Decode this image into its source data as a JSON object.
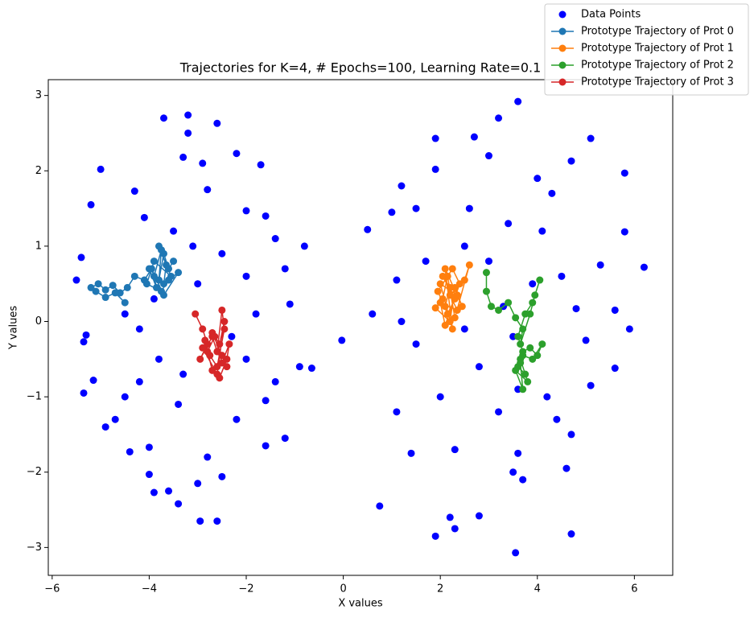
{
  "chart_data": {
    "type": "scatter",
    "title": "Trajectories for K=4, # Epochs=100, Learning Rate=0.1",
    "xlabel": "X values",
    "ylabel": "Y values",
    "xlim": [
      -6.08,
      6.79
    ],
    "ylim": [
      -3.37,
      3.21
    ],
    "xticks": [
      {
        "value": -6,
        "label": "−6"
      },
      {
        "value": -4,
        "label": "−4"
      },
      {
        "value": -2,
        "label": "−2"
      },
      0,
      2,
      4,
      6
    ],
    "yticks": [
      {
        "value": -3,
        "label": "−3"
      },
      {
        "value": -2,
        "label": "−2"
      },
      {
        "value": -1,
        "label": "−1"
      },
      0,
      1,
      2,
      3
    ],
    "grid": false,
    "legend": "upper right",
    "series": [
      {
        "name": "Data Points",
        "mode": "markers",
        "color": "#0000ff",
        "x": [
          -5.5,
          -5.4,
          -5.35,
          -5.3,
          -5.35,
          -5.2,
          -5.15,
          -5.0,
          -4.9,
          -4.7,
          -4.5,
          -4.4,
          -4.3,
          -4.1,
          -4.0,
          -4.0,
          -3.9,
          -3.7,
          -3.6,
          -3.4,
          -3.3,
          -3.2,
          -3.2,
          -3.0,
          -2.95,
          -2.9,
          -2.8,
          -2.6,
          -2.6,
          -2.5,
          -2.2,
          -2.0,
          -1.7,
          -1.6,
          -1.4,
          -1.2,
          -1.1,
          -0.8,
          -0.9,
          -0.65,
          -1.2,
          -1.6,
          -1.6,
          -2.0,
          -2.3,
          -3.0,
          -3.5,
          -3.3,
          -3.8,
          -4.2,
          -4.5,
          -2.5,
          -2.0,
          -3.9,
          -2.2,
          -3.4,
          -4.2,
          -2.8,
          -3.1,
          -1.8,
          -1.4,
          -0.03,
          0.5,
          0.6,
          0.75,
          1.0,
          1.1,
          1.1,
          1.2,
          1.4,
          1.5,
          1.9,
          1.9,
          1.9,
          2.2,
          2.3,
          2.7,
          2.8,
          3.2,
          3.0,
          3.6,
          3.6,
          3.5,
          3.7,
          3.55,
          4.0,
          4.3,
          4.7,
          5.1,
          5.8,
          5.8,
          6.2,
          5.6,
          5.9,
          5.6,
          4.7,
          4.6,
          4.7,
          5.1,
          5.3,
          2.5,
          3.0,
          3.5,
          2.8,
          3.2,
          4.5,
          4.2,
          2.0,
          1.5,
          1.2,
          4.8,
          5.0,
          2.6,
          3.4,
          4.1,
          2.3,
          4.4,
          1.7,
          3.9,
          3.3,
          2.5,
          3.6
        ],
        "y": [
          0.55,
          0.85,
          -0.27,
          -0.18,
          -0.95,
          1.55,
          -0.78,
          2.02,
          -1.4,
          -1.3,
          -1.0,
          -1.73,
          1.73,
          1.38,
          -1.67,
          -2.03,
          -2.27,
          2.7,
          -2.25,
          -2.42,
          2.18,
          2.74,
          2.5,
          -2.15,
          -2.65,
          2.1,
          1.75,
          2.63,
          -2.65,
          -2.06,
          2.23,
          1.47,
          2.08,
          1.4,
          1.1,
          0.7,
          0.23,
          1.0,
          -0.6,
          -0.62,
          -1.55,
          -1.65,
          -1.05,
          -0.5,
          -0.2,
          0.5,
          1.2,
          -0.7,
          -0.5,
          -0.1,
          0.1,
          0.9,
          0.6,
          0.3,
          -1.3,
          -1.1,
          -0.8,
          -1.8,
          1.0,
          0.1,
          -0.8,
          -0.25,
          1.22,
          0.1,
          -2.45,
          1.45,
          0.55,
          -1.2,
          1.8,
          -1.75,
          1.5,
          2.02,
          2.43,
          -2.85,
          -2.6,
          -2.75,
          2.45,
          -2.58,
          2.7,
          2.2,
          2.92,
          -1.75,
          -2.0,
          -2.1,
          -3.07,
          1.9,
          1.7,
          2.13,
          2.43,
          1.97,
          1.19,
          0.72,
          0.15,
          -0.1,
          -0.62,
          -2.82,
          -1.95,
          -1.5,
          -0.85,
          0.75,
          1.0,
          0.8,
          -0.2,
          -0.6,
          -1.2,
          0.6,
          -1.0,
          -1.0,
          -0.3,
          0.0,
          0.17,
          -0.25,
          1.5,
          1.3,
          1.2,
          -1.7,
          -1.3,
          0.8,
          0.5,
          0.2,
          -0.1,
          -0.9
        ]
      },
      {
        "name": "Prototype Trajectory of Prot 0",
        "mode": "lines+markers",
        "color": "#1f77b4",
        "x": [
          -3.5,
          -3.6,
          -3.7,
          -3.8,
          -3.75,
          -3.9,
          -3.85,
          -4.0,
          -3.7,
          -3.65,
          -3.8,
          -3.55,
          -3.9,
          -4.05,
          -3.75,
          -3.6,
          -3.4,
          -3.7,
          -3.95,
          -4.1,
          -4.3,
          -4.45,
          -4.6,
          -4.75,
          -4.9,
          -5.05,
          -5.2,
          -5.1,
          -4.9,
          -4.7,
          -4.5
        ],
        "y": [
          0.8,
          0.7,
          0.9,
          0.55,
          0.95,
          0.6,
          0.45,
          0.7,
          0.5,
          0.75,
          1.0,
          0.6,
          0.8,
          0.5,
          0.4,
          0.55,
          0.65,
          0.35,
          0.7,
          0.55,
          0.6,
          0.45,
          0.38,
          0.48,
          0.42,
          0.5,
          0.45,
          0.4,
          0.32,
          0.38,
          0.25
        ]
      },
      {
        "name": "Prototype Trajectory of Prot 1",
        "mode": "lines+markers",
        "color": "#ff7f0e",
        "x": [
          2.1,
          2.2,
          2.05,
          2.3,
          2.15,
          1.95,
          2.25,
          2.4,
          2.1,
          2.0,
          2.35,
          2.2,
          2.5,
          2.6,
          2.3,
          2.15,
          2.05,
          1.9,
          2.2,
          2.3,
          2.45,
          2.1,
          2.25,
          2.0,
          2.35
        ],
        "y": [
          0.2,
          0.45,
          0.6,
          0.3,
          0.1,
          0.4,
          0.7,
          0.5,
          -0.05,
          0.25,
          0.15,
          0.35,
          0.55,
          0.75,
          0.05,
          0.6,
          0.3,
          0.18,
          0.0,
          0.45,
          0.2,
          0.7,
          -0.1,
          0.5,
          0.35
        ]
      },
      {
        "name": "Prototype Trajectory of Prot 2",
        "mode": "lines+markers",
        "color": "#2ca02c",
        "x": [
          2.95,
          2.95,
          3.05,
          3.2,
          3.4,
          3.55,
          3.7,
          3.65,
          3.85,
          3.95,
          4.05,
          3.9,
          3.75,
          3.6,
          3.7,
          3.85,
          4.0,
          4.1,
          3.9,
          3.7,
          3.6,
          3.75,
          3.65,
          3.8,
          3.55,
          3.7,
          3.65
        ],
        "y": [
          0.65,
          0.4,
          0.2,
          0.15,
          0.25,
          0.05,
          -0.1,
          -0.3,
          0.1,
          0.35,
          0.55,
          0.25,
          0.1,
          -0.2,
          -0.4,
          -0.35,
          -0.45,
          -0.3,
          -0.5,
          -0.45,
          -0.6,
          -0.7,
          -0.5,
          -0.8,
          -0.65,
          -0.9,
          -0.55
        ]
      },
      {
        "name": "Prototype Trajectory of Prot 3",
        "mode": "lines+markers",
        "color": "#d62728",
        "x": [
          -3.05,
          -2.9,
          -2.8,
          -2.95,
          -2.7,
          -2.6,
          -2.5,
          -2.45,
          -2.6,
          -2.75,
          -2.85,
          -2.7,
          -2.55,
          -2.4,
          -2.35,
          -2.5,
          -2.65,
          -2.8,
          -2.9,
          -2.6,
          -2.45,
          -2.55,
          -2.7,
          -2.5,
          -2.4
        ],
        "y": [
          0.1,
          -0.1,
          -0.3,
          -0.5,
          -0.2,
          -0.4,
          0.15,
          -0.1,
          -0.6,
          -0.45,
          -0.25,
          -0.65,
          -0.75,
          -0.5,
          -0.3,
          -0.55,
          -0.2,
          -0.4,
          -0.35,
          -0.7,
          0.0,
          -0.3,
          -0.15,
          -0.45,
          -0.6
        ]
      }
    ]
  }
}
